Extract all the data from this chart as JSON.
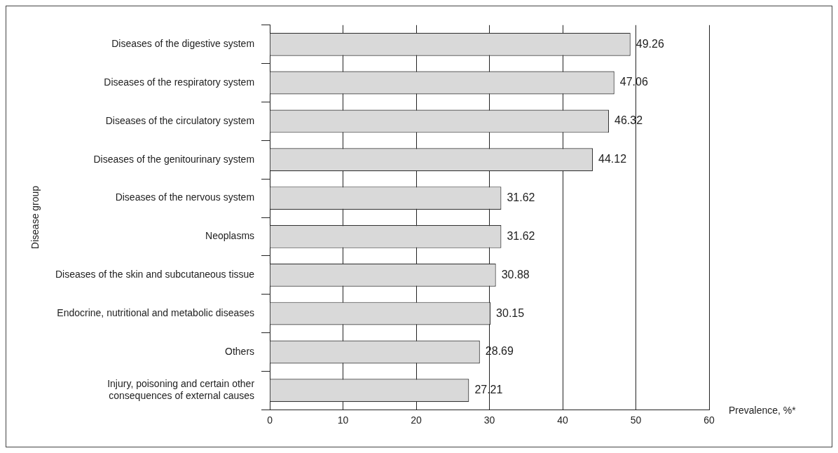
{
  "chart_data": {
    "type": "bar",
    "orientation": "horizontal",
    "xlabel": "Prevalence, %*",
    "ylabel": "Disease group",
    "categories": [
      "Diseases of the digestive system",
      "Diseases of the respiratory system",
      "Diseases of the circulatory system",
      "Diseases of the genitourinary system",
      "Diseases of the nervous system",
      "Neoplasms",
      "Diseases of the skin and subcutaneous tissue",
      "Endocrine, nutritional and metabolic diseases",
      "Others",
      "Injury, poisoning and certain other\nconsequences of external causes"
    ],
    "values": [
      49.26,
      47.06,
      46.32,
      44.12,
      31.62,
      31.62,
      30.88,
      30.15,
      28.69,
      27.21
    ],
    "color": "#d9d9d9",
    "xlim": [
      0,
      60
    ],
    "xticks": [
      0,
      10,
      20,
      30,
      40,
      50,
      60
    ],
    "grid": "x",
    "data_labels": true,
    "legend": false
  }
}
